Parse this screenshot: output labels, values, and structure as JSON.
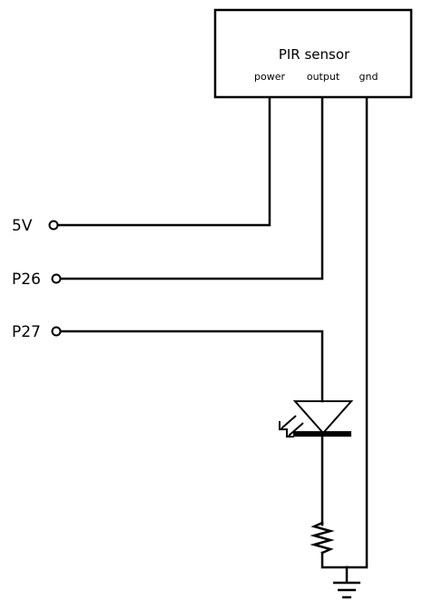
{
  "sensor": {
    "title": "PIR sensor",
    "pins": {
      "power": "power",
      "output": "output",
      "gnd": "gnd"
    }
  },
  "terminals": {
    "v5": "5V",
    "p26": "P26",
    "p27": "P27"
  },
  "components": {
    "led": "led-symbol",
    "resistor": "resistor-symbol",
    "ground": "ground-symbol"
  },
  "colors": {
    "line": "#000000",
    "background": "#ffffff"
  }
}
